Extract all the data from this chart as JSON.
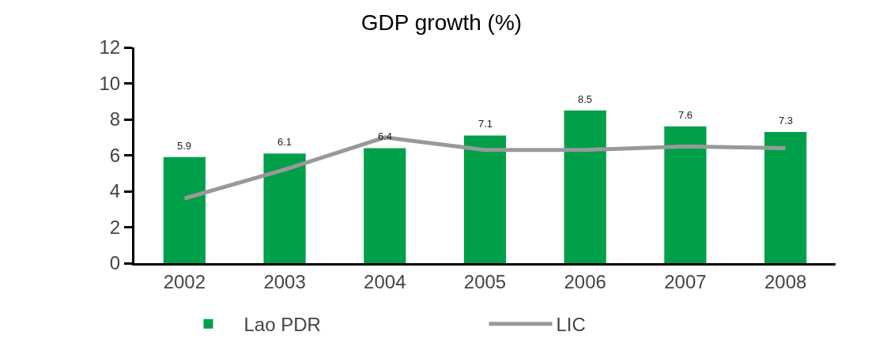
{
  "chart_data": {
    "type": "bar",
    "title": "GDP growth (%)",
    "categories": [
      "2002",
      "2003",
      "2004",
      "2005",
      "2006",
      "2007",
      "2008"
    ],
    "series": [
      {
        "name": "Lao PDR",
        "color": "#00a04a",
        "values": [
          5.9,
          6.1,
          6.4,
          7.1,
          8.5,
          7.6,
          7.3
        ],
        "value_labels": [
          "5.9",
          "6.1",
          "6.4",
          "7.1",
          "8.5",
          "7.6",
          "7.3"
        ]
      },
      {
        "name": "LIC",
        "type": "line",
        "color": "#999999",
        "values": [
          3.6,
          5.2,
          7.0,
          6.3,
          6.3,
          6.5,
          6.4
        ]
      }
    ],
    "ylim": [
      0,
      12
    ],
    "yticks": [
      0,
      2,
      4,
      6,
      8,
      10,
      12
    ],
    "grid": false,
    "legend": "bottom",
    "marker": "none",
    "line_style": "solid"
  }
}
